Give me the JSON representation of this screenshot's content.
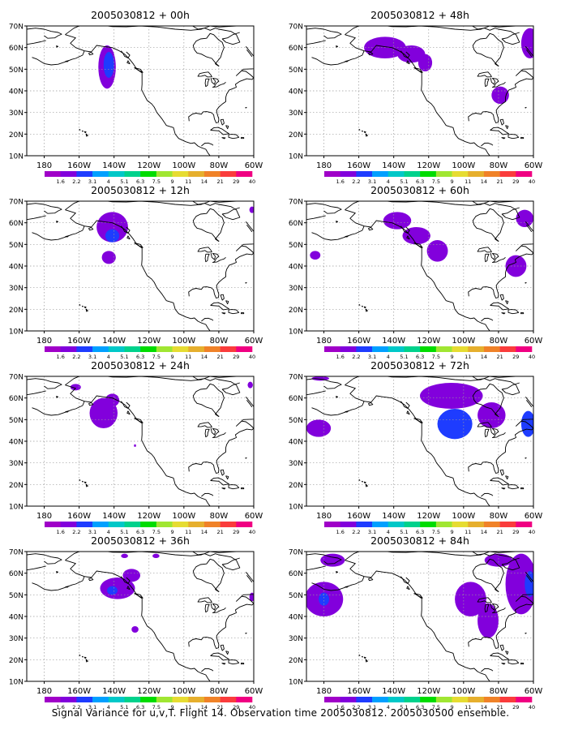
{
  "caption": "Signal Variance for u,v,T. Flight 14. Observation time 2005030812. 2005030500 ensemble.",
  "colors": {
    "scale": [
      "#a000c8",
      "#8200dc",
      "#1e3cff",
      "#00a0ff",
      "#00c8c8",
      "#00d28c",
      "#00dc00",
      "#a0e632",
      "#e6dc32",
      "#e6af2d",
      "#f08228",
      "#fa3c3c",
      "#f00082"
    ],
    "coast": "#000000",
    "grid": "#9a9a9a"
  },
  "axes": {
    "lat_ticks": [
      "10N",
      "20N",
      "30N",
      "40N",
      "50N",
      "60N",
      "70N"
    ],
    "lon_ticks": [
      "180",
      "160W",
      "140W",
      "120W",
      "100W",
      "80W",
      "60W"
    ],
    "lat_range": [
      10,
      70
    ],
    "lon_range": [
      -190,
      -60
    ]
  },
  "colorbar": {
    "labels": [
      "1.6",
      "2.2",
      "3.1",
      "4",
      "5.1",
      "6.3",
      "7.5",
      "9",
      "11",
      "14",
      "21",
      "29",
      "40"
    ]
  },
  "chart_data": [
    {
      "type": "heatmap",
      "title": "2005030812 + 00h",
      "blobs": [
        {
          "lon": -144,
          "lat": 51,
          "rlon": 5,
          "rlat": 10,
          "level": 1
        },
        {
          "lon": -143,
          "lat": 52,
          "rlon": 3,
          "rlat": 6,
          "level": 2
        }
      ]
    },
    {
      "type": "heatmap",
      "title": "2005030812 + 48h",
      "blobs": [
        {
          "lon": -145,
          "lat": 60,
          "rlon": 12,
          "rlat": 5,
          "level": 1
        },
        {
          "lon": -130,
          "lat": 57,
          "rlon": 8,
          "rlat": 4,
          "level": 1
        },
        {
          "lon": -122,
          "lat": 53,
          "rlon": 4,
          "rlat": 4,
          "level": 1
        },
        {
          "lon": -79,
          "lat": 38,
          "rlon": 5,
          "rlat": 4,
          "level": 1
        },
        {
          "lon": -62,
          "lat": 62,
          "rlon": 5,
          "rlat": 7,
          "level": 1
        }
      ]
    },
    {
      "type": "heatmap",
      "title": "2005030812 + 12h",
      "blobs": [
        {
          "lon": -141,
          "lat": 58,
          "rlon": 9,
          "rlat": 7,
          "level": 1
        },
        {
          "lon": -141,
          "lat": 54,
          "rlon": 4,
          "rlat": 3,
          "level": 2
        },
        {
          "lon": -143,
          "lat": 44,
          "rlon": 4,
          "rlat": 3,
          "level": 1
        },
        {
          "lon": -61,
          "lat": 66,
          "rlon": 1.5,
          "rlat": 1.5,
          "level": 1
        }
      ]
    },
    {
      "type": "heatmap",
      "title": "2005030812 + 60h",
      "blobs": [
        {
          "lon": -138,
          "lat": 61,
          "rlon": 8,
          "rlat": 4,
          "level": 1
        },
        {
          "lon": -127,
          "lat": 54,
          "rlon": 8,
          "rlat": 4,
          "level": 1
        },
        {
          "lon": -115,
          "lat": 47,
          "rlon": 6,
          "rlat": 5,
          "level": 1
        },
        {
          "lon": -65,
          "lat": 62,
          "rlon": 5,
          "rlat": 4,
          "level": 1
        },
        {
          "lon": -70,
          "lat": 40,
          "rlon": 6,
          "rlat": 5,
          "level": 1
        },
        {
          "lon": -185,
          "lat": 45,
          "rlon": 3,
          "rlat": 2,
          "level": 1
        }
      ]
    },
    {
      "type": "heatmap",
      "title": "2005030812 + 24h",
      "blobs": [
        {
          "lon": -146,
          "lat": 53,
          "rlon": 8,
          "rlat": 7,
          "level": 1
        },
        {
          "lon": -141,
          "lat": 59,
          "rlon": 4,
          "rlat": 3,
          "level": 1
        },
        {
          "lon": -162,
          "lat": 65,
          "rlon": 3,
          "rlat": 1.5,
          "level": 1
        },
        {
          "lon": -128,
          "lat": 38,
          "rlon": 0.6,
          "rlat": 0.6,
          "level": 1
        },
        {
          "lon": -62,
          "lat": 66,
          "rlon": 1.5,
          "rlat": 1.5,
          "level": 1
        }
      ]
    },
    {
      "type": "heatmap",
      "title": "2005030812 + 72h",
      "blobs": [
        {
          "lon": -107,
          "lat": 61,
          "rlon": 18,
          "rlat": 6,
          "level": 1
        },
        {
          "lon": -105,
          "lat": 48,
          "rlon": 10,
          "rlat": 7,
          "level": 2
        },
        {
          "lon": -84,
          "lat": 52,
          "rlon": 8,
          "rlat": 6,
          "level": 1
        },
        {
          "lon": -63,
          "lat": 48,
          "rlon": 4,
          "rlat": 6,
          "level": 2
        },
        {
          "lon": -183,
          "lat": 46,
          "rlon": 7,
          "rlat": 4,
          "level": 1
        },
        {
          "lon": -182,
          "lat": 69,
          "rlon": 5,
          "rlat": 1,
          "level": 1
        }
      ]
    },
    {
      "type": "heatmap",
      "title": "2005030812 + 36h",
      "blobs": [
        {
          "lon": -138,
          "lat": 53,
          "rlon": 10,
          "rlat": 5,
          "level": 1
        },
        {
          "lon": -141,
          "lat": 52,
          "rlon": 3,
          "rlat": 2,
          "level": 2
        },
        {
          "lon": -130,
          "lat": 59,
          "rlon": 5,
          "rlat": 3,
          "level": 1
        },
        {
          "lon": -128,
          "lat": 34,
          "rlon": 2,
          "rlat": 1.5,
          "level": 1
        },
        {
          "lon": -61,
          "lat": 49,
          "rlon": 1.5,
          "rlat": 2,
          "level": 1
        },
        {
          "lon": -134,
          "lat": 68,
          "rlon": 2,
          "rlat": 1,
          "level": 1
        },
        {
          "lon": -116,
          "lat": 68,
          "rlon": 2,
          "rlat": 1,
          "level": 1
        }
      ]
    },
    {
      "type": "heatmap",
      "title": "2005030812 + 84h",
      "blobs": [
        {
          "lon": -180,
          "lat": 48,
          "rlon": 11,
          "rlat": 8,
          "level": 1
        },
        {
          "lon": -180,
          "lat": 48,
          "rlon": 3,
          "rlat": 3,
          "level": 2
        },
        {
          "lon": -175,
          "lat": 66,
          "rlon": 7,
          "rlat": 3,
          "level": 1
        },
        {
          "lon": -96,
          "lat": 48,
          "rlon": 9,
          "rlat": 8,
          "level": 1
        },
        {
          "lon": -86,
          "lat": 38,
          "rlon": 6,
          "rlat": 8,
          "level": 1
        },
        {
          "lon": -67,
          "lat": 55,
          "rlon": 9,
          "rlat": 14,
          "level": 1
        },
        {
          "lon": -62,
          "lat": 55,
          "rlon": 3,
          "rlat": 6,
          "level": 2
        },
        {
          "lon": -80,
          "lat": 66,
          "rlon": 8,
          "rlat": 3,
          "level": 1
        }
      ]
    }
  ]
}
